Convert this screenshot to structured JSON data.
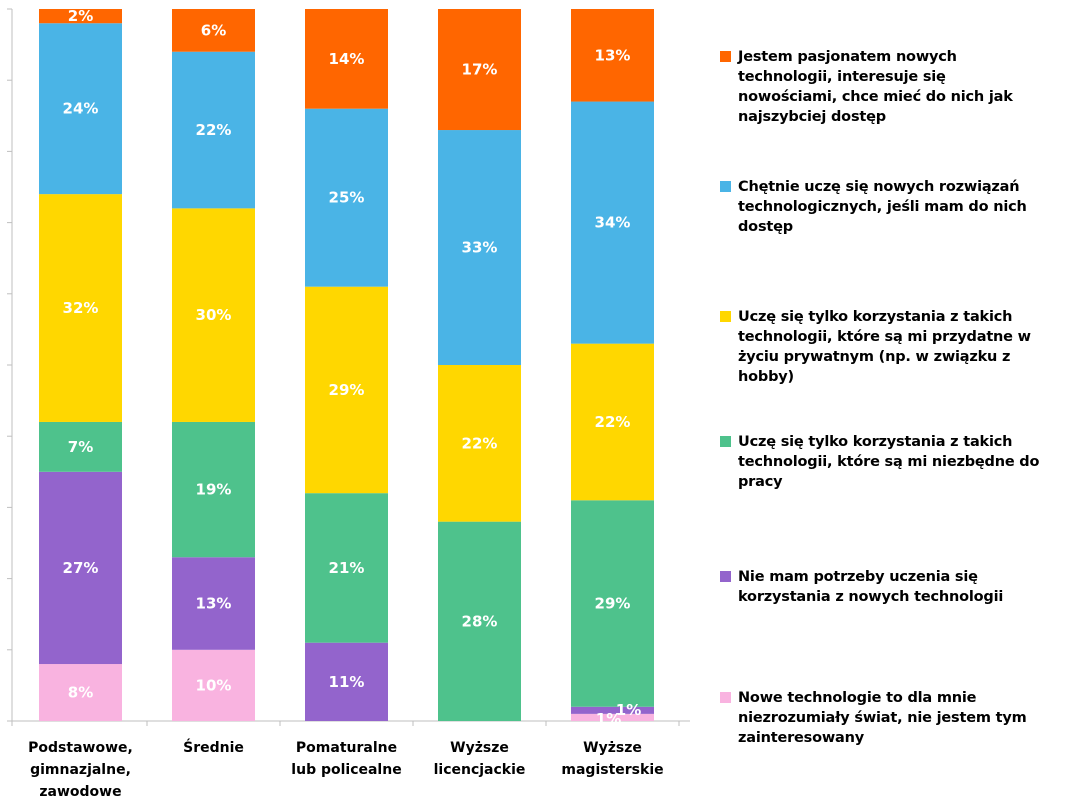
{
  "chart_data": {
    "type": "bar",
    "stacked": true,
    "categories": [
      [
        "Podstawowe,",
        "gimnazjalne,",
        "zawodowe"
      ],
      [
        "Średnie"
      ],
      [
        "Pomaturalne",
        "lub policealne"
      ],
      [
        "Wyższe",
        "licencjackie"
      ],
      [
        "Wyższe",
        "magisterskie"
      ]
    ],
    "ylim": [
      0,
      100
    ],
    "grid": false,
    "legend_position": "right",
    "series": [
      {
        "name": "Nowe technologie to dla mnie niezrozumiały świat, nie jestem tym zainteresowany",
        "color": "#F9B3E0",
        "values": [
          8,
          10,
          0,
          0,
          1
        ],
        "labels": [
          "8%",
          "10%",
          "",
          "",
          "1%"
        ]
      },
      {
        "name": "Nie mam potrzeby uczenia się korzystania z nowych technologii",
        "color": "#9364CC",
        "values": [
          27,
          13,
          11,
          0,
          1
        ],
        "labels": [
          "27%",
          "13%",
          "11%",
          "",
          "1%"
        ]
      },
      {
        "name": "Uczę się tylko korzystania z takich technologii, które są mi niezbędne do pracy",
        "color": "#4EC28C",
        "values": [
          7,
          19,
          21,
          28,
          29
        ],
        "labels": [
          "7%",
          "19%",
          "21%",
          "28%",
          "29%"
        ]
      },
      {
        "name": "Uczę się tylko korzystania z takich technologii, które są mi przydatne w życiu prywatnym (np. w związku z hobby)",
        "color": "#FFD700",
        "values": [
          32,
          30,
          29,
          22,
          22
        ],
        "labels": [
          "32%",
          "30%",
          "29%",
          "22%",
          "22%"
        ]
      },
      {
        "name": "Chętnie uczę się nowych rozwiązań technologicznych, jeśli mam do nich dostęp",
        "color": "#4AB4E6",
        "values": [
          24,
          22,
          25,
          33,
          34
        ],
        "labels": [
          "24%",
          "22%",
          "25%",
          "33%",
          "34%"
        ]
      },
      {
        "name": "Jestem pasjonatem nowych technologii, interesuje się nowościami, chce mieć do nich jak najszybciej dostęp",
        "color": "#FF6600",
        "values": [
          2,
          6,
          14,
          17,
          13
        ],
        "labels": [
          "2%",
          "6%",
          "14%",
          "17%",
          "13%"
        ]
      }
    ]
  },
  "legend": {
    "items": [
      {
        "lines": [
          "Jestem pasjonatem nowych",
          "technologii, interesuje się",
          "nowościami, chce mieć do nich jak",
          "najszybciej dostęp"
        ],
        "color": "#FF6600"
      },
      {
        "lines": [
          "Chętnie uczę się nowych rozwiązań",
          "technologicznych, jeśli mam do nich",
          "dostęp"
        ],
        "color": "#4AB4E6"
      },
      {
        "lines": [
          "Uczę się tylko korzystania z takich",
          "technologii, które są mi przydatne w",
          "życiu prywatnym (np. w związku z",
          "hobby)"
        ],
        "color": "#FFD700"
      },
      {
        "lines": [
          "Uczę się tylko korzystania z takich",
          "technologii, które są mi niezbędne do",
          "pracy"
        ],
        "color": "#4EC28C"
      },
      {
        "lines": [
          "Nie mam potrzeby uczenia się",
          "korzystania z nowych technologii"
        ],
        "color": "#9364CC"
      },
      {
        "lines": [
          "Nowe technologie to dla mnie",
          "niezrozumiały świat, nie jestem tym",
          "zainteresowany"
        ],
        "color": "#F9B3E0"
      }
    ]
  }
}
